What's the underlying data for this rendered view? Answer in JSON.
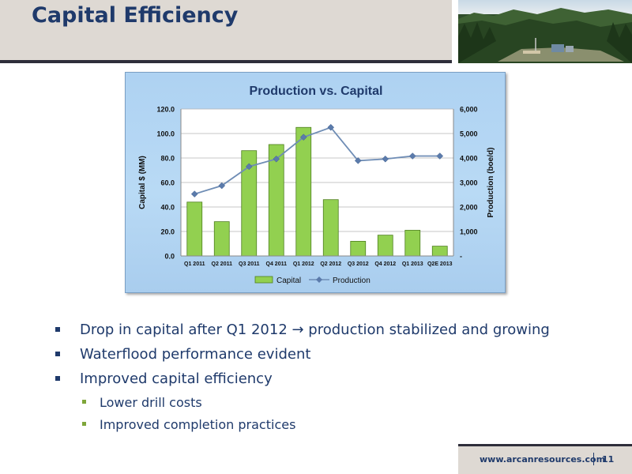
{
  "slide": {
    "title": "Capital Efficiency",
    "footer_url": "www.arcanresources.com",
    "page_number": "11"
  },
  "bullets": [
    {
      "level": 1,
      "text": "Drop in capital after Q1 2012 → production stabilized and growing"
    },
    {
      "level": 1,
      "text": "Waterflood performance evident"
    },
    {
      "level": 1,
      "text": "Improved  capital efficiency"
    },
    {
      "level": 2,
      "text": "Lower drill costs"
    },
    {
      "level": 2,
      "text": "Improved completion practices"
    }
  ],
  "colors": {
    "title": "#1f3a6b",
    "bar_fill": "#92d050",
    "bar_stroke": "#4f7f1f",
    "line": "#6f8db5",
    "marker": "#5b7bab"
  },
  "chart_data": {
    "type": "bar",
    "title": "Production vs. Capital",
    "categories": [
      "Q1 2011",
      "Q2 2011",
      "Q3 2011",
      "Q4 2011",
      "Q1 2012",
      "Q2 2012",
      "Q3 2012",
      "Q4 2012",
      "Q1 2013",
      "Q2E 2013"
    ],
    "series": [
      {
        "name": "Capital",
        "type": "bar",
        "axis": "left",
        "values": [
          44,
          28,
          86,
          91,
          105,
          46,
          12,
          17,
          21,
          8
        ]
      },
      {
        "name": "Production",
        "type": "line",
        "axis": "right",
        "values": [
          2530,
          2870,
          3650,
          3960,
          4850,
          5250,
          3890,
          3960,
          4080,
          4080
        ]
      }
    ],
    "ylabel": "Capital $ (MM)",
    "y2label": "Production (boe/d)",
    "ylim": [
      0,
      120
    ],
    "y2lim": [
      0,
      6000
    ],
    "yticks": [
      "0.0",
      "20.0",
      "40.0",
      "60.0",
      "80.0",
      "100.0",
      "120.0"
    ],
    "y2ticks": [
      "-",
      "1,000",
      "2,000",
      "3,000",
      "4,000",
      "5,000",
      "6,000"
    ],
    "grid": true,
    "legend_position": "bottom"
  }
}
